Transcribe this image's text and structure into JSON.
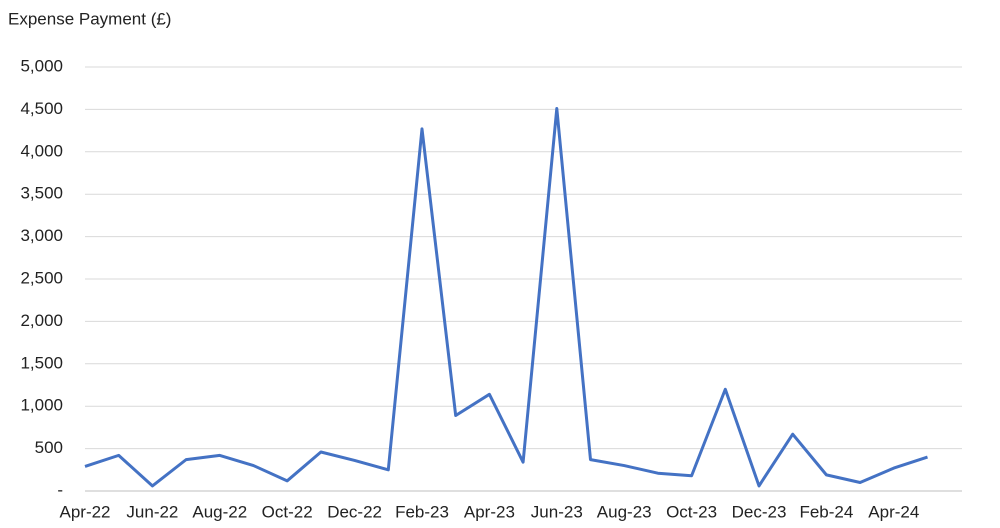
{
  "chart_data": {
    "type": "line",
    "y_axis_title": "Expense Payment (£)",
    "categories": [
      "Apr-22",
      null,
      "Jun-22",
      null,
      "Aug-22",
      null,
      "Oct-22",
      null,
      "Dec-22",
      null,
      "Feb-23",
      null,
      "Apr-23",
      null,
      "Jun-23",
      null,
      "Aug-23",
      null,
      "Oct-23",
      null,
      "Dec-23",
      null,
      "Feb-24",
      null,
      "Apr-24",
      null
    ],
    "series": [
      {
        "name": "Expense Payment",
        "color": "#4472c4",
        "values": [
          290,
          420,
          60,
          370,
          420,
          300,
          120,
          460,
          360,
          250,
          4270,
          890,
          1140,
          340,
          4510,
          370,
          300,
          210,
          180,
          1200,
          60,
          670,
          190,
          100,
          270,
          400
        ]
      }
    ],
    "ylim": [
      0,
      5000
    ],
    "yticks": [
      {
        "value": 0,
        "label": "-"
      },
      500,
      {
        "value": 1000,
        "label": "1,000"
      },
      {
        "value": 1500,
        "label": "1,500"
      },
      {
        "value": 2000,
        "label": "2,000"
      },
      {
        "value": 2500,
        "label": "2,500"
      },
      {
        "value": 3000,
        "label": "3,000"
      },
      {
        "value": 3500,
        "label": "3,500"
      },
      {
        "value": 4000,
        "label": "4,000"
      },
      {
        "value": 4500,
        "label": "4,500"
      },
      {
        "value": 5000,
        "label": "5,000"
      }
    ],
    "grid": true
  }
}
